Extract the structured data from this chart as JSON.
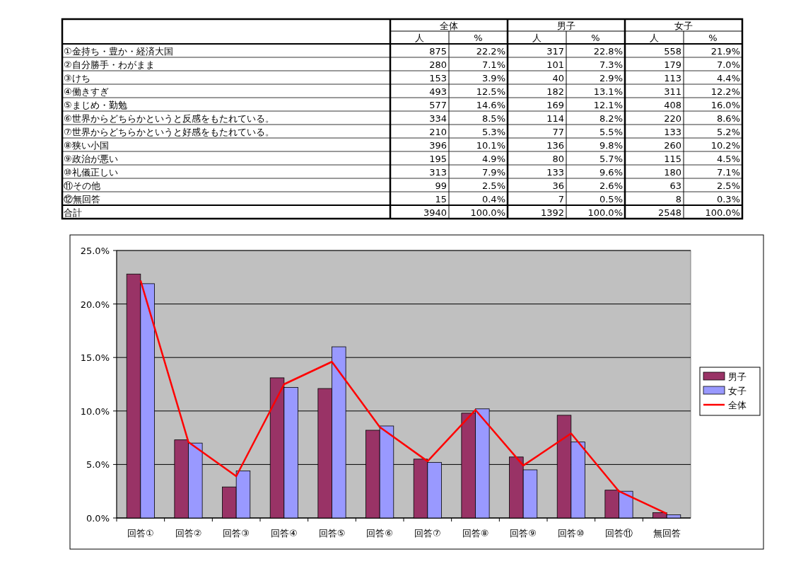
{
  "chart_data": [
    {
      "type": "other",
      "categories": [
        "①金持ち・豊か・経済大国",
        "②自分勝手・わがまま",
        "③けち",
        "④働きすぎ",
        "⑤まじめ・勤勉",
        "⑥世界からどちらかというと反感をもたれている。",
        "⑦世界からどちらかというと好感をもたれている。",
        "⑧狭い小国",
        "⑨政治が悪い",
        "⑩礼儀正しい",
        "⑪その他",
        "⑫無回答",
        "合計"
      ],
      "annotations": [
        "全体",
        "男子",
        "女子"
      ],
      "series": [
        {
          "name": "人",
          "values": [
            875,
            280,
            153,
            493,
            577,
            334,
            210,
            396,
            195,
            313,
            99,
            15,
            3940
          ],
          "value_labels": [
            "875",
            "280",
            "153",
            "493",
            "577",
            "334",
            "210",
            "396",
            "195",
            "313",
            "99",
            "15",
            "3940"
          ]
        },
        {
          "name": "%",
          "values": [
            22.2,
            7.1,
            3.9,
            12.5,
            14.6,
            8.5,
            5.3,
            10.1,
            4.9,
            7.9,
            2.5,
            0.4,
            100.0
          ],
          "value_labels": [
            "22.2%",
            "7.1%",
            "3.9%",
            "12.5%",
            "14.6%",
            "8.5%",
            "5.3%",
            "10.1%",
            "4.9%",
            "7.9%",
            "2.5%",
            "0.4%",
            "100.0%"
          ]
        },
        {
          "name": "人",
          "values": [
            317,
            101,
            40,
            182,
            169,
            114,
            77,
            136,
            80,
            133,
            36,
            7,
            1392
          ],
          "value_labels": [
            "317",
            "101",
            "40",
            "182",
            "169",
            "114",
            "77",
            "136",
            "80",
            "133",
            "36",
            "7",
            "1392"
          ]
        },
        {
          "name": "%",
          "values": [
            22.8,
            7.3,
            2.9,
            13.1,
            12.1,
            8.2,
            5.5,
            9.8,
            5.7,
            9.6,
            2.6,
            0.5,
            100.0
          ],
          "value_labels": [
            "22.8%",
            "7.3%",
            "2.9%",
            "13.1%",
            "12.1%",
            "8.2%",
            "5.5%",
            "9.8%",
            "5.7%",
            "9.6%",
            "2.6%",
            "0.5%",
            "100.0%"
          ]
        },
        {
          "name": "人",
          "values": [
            558,
            179,
            113,
            311,
            408,
            220,
            133,
            260,
            115,
            180,
            63,
            8,
            2548
          ],
          "value_labels": [
            "558",
            "179",
            "113",
            "311",
            "408",
            "220",
            "133",
            "260",
            "115",
            "180",
            "63",
            "8",
            "2548"
          ]
        },
        {
          "name": "%",
          "values": [
            21.9,
            7.0,
            4.4,
            12.2,
            16.0,
            8.6,
            5.2,
            10.2,
            4.5,
            7.1,
            2.5,
            0.3,
            100.0
          ],
          "value_labels": [
            "21.9%",
            "7.0%",
            "4.4%",
            "12.2%",
            "16.0%",
            "8.6%",
            "5.2%",
            "10.2%",
            "4.5%",
            "7.1%",
            "2.5%",
            "0.3%",
            "100.0%"
          ]
        }
      ]
    },
    {
      "type": "bar",
      "categories": [
        "回答①",
        "回答②",
        "回答③",
        "回答④",
        "回答⑤",
        "回答⑥",
        "回答⑦",
        "回答⑧",
        "回答⑨",
        "回答⑩",
        "回答⑪",
        "無回答"
      ],
      "series": [
        {
          "name": "男子",
          "color": "#993366",
          "values": [
            22.8,
            7.3,
            2.9,
            13.1,
            12.1,
            8.2,
            5.5,
            9.8,
            5.7,
            9.6,
            2.6,
            0.5
          ]
        },
        {
          "name": "女子",
          "color": "#9999ff",
          "values": [
            21.9,
            7.0,
            4.4,
            12.2,
            16.0,
            8.6,
            5.2,
            10.2,
            4.5,
            7.1,
            2.5,
            0.3
          ]
        },
        {
          "name": "全体",
          "type": "line",
          "color": "#ff0000",
          "values": [
            22.2,
            7.1,
            3.9,
            12.5,
            14.6,
            8.5,
            5.3,
            10.1,
            4.9,
            7.9,
            2.5,
            0.4
          ]
        }
      ],
      "ylim": [
        0,
        25
      ],
      "yticks": [
        {
          "value": 0,
          "label": "0.0%"
        },
        {
          "value": 5,
          "label": "5.0%"
        },
        {
          "value": 10,
          "label": "10.0%"
        },
        {
          "value": 15,
          "label": "15.0%"
        },
        {
          "value": 20,
          "label": "20.0%"
        },
        {
          "value": 25,
          "label": "25.0%"
        }
      ],
      "grid": "y",
      "legend": "right"
    }
  ]
}
